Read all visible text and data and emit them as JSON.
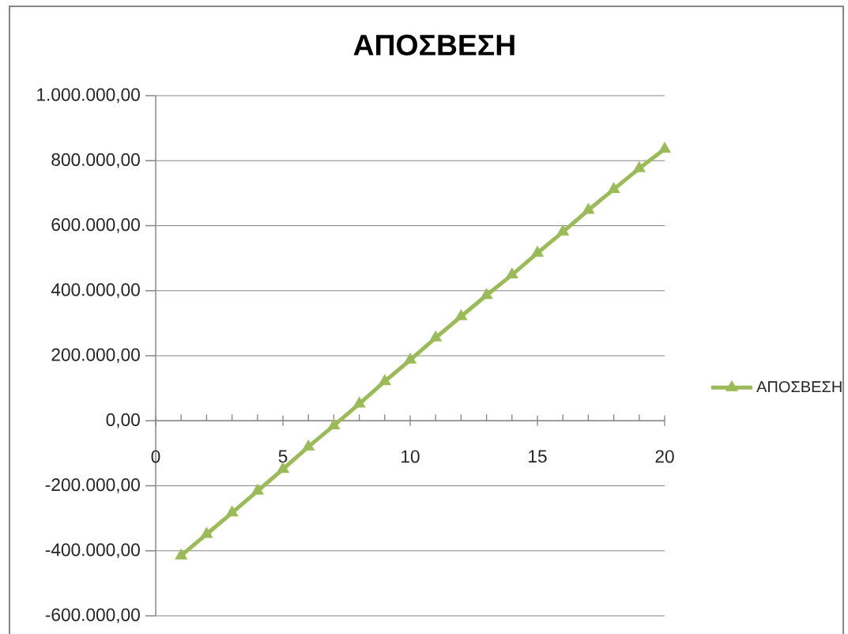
{
  "chart_data": {
    "type": "line",
    "title": "ΑΠΟΣΒΕΣΗ",
    "x": [
      1,
      2,
      3,
      4,
      5,
      6,
      7,
      8,
      9,
      10,
      11,
      12,
      13,
      14,
      15,
      16,
      17,
      18,
      19,
      20
    ],
    "series": [
      {
        "name": "ΑΠΟΣΒΕΣΗ",
        "color": "#9bbb59",
        "values": [
          -415000,
          -349000,
          -283000,
          -216000,
          -149000,
          -80000,
          -15000,
          52000,
          121000,
          187000,
          255000,
          321000,
          386000,
          449000,
          516000,
          581000,
          648000,
          712000,
          776000,
          836000
        ]
      }
    ],
    "xlim": [
      0,
      20
    ],
    "xticks": [
      0,
      {
        "value": 1,
        "label": null
      },
      {
        "value": 2,
        "label": null
      },
      {
        "value": 3,
        "label": null
      },
      {
        "value": 4,
        "label": null
      },
      5,
      {
        "value": 6,
        "label": null
      },
      {
        "value": 7,
        "label": null
      },
      {
        "value": 8,
        "label": null
      },
      {
        "value": 9,
        "label": null
      },
      10,
      {
        "value": 11,
        "label": null
      },
      {
        "value": 12,
        "label": null
      },
      {
        "value": 13,
        "label": null
      },
      {
        "value": 14,
        "label": null
      },
      15,
      {
        "value": 16,
        "label": null
      },
      {
        "value": 17,
        "label": null
      },
      {
        "value": 18,
        "label": null
      },
      {
        "value": 19,
        "label": null
      },
      20
    ],
    "ylim": [
      -600000,
      1000000
    ],
    "yticks": [
      {
        "value": -600000,
        "label": "-600.000,00"
      },
      {
        "value": -400000,
        "label": "-400.000,00"
      },
      {
        "value": -200000,
        "label": "-200.000,00"
      },
      {
        "value": 0,
        "label": "0,00"
      },
      {
        "value": 200000,
        "label": "200.000,00"
      },
      {
        "value": 400000,
        "label": "400.000,00"
      },
      {
        "value": 600000,
        "label": "600.000,00"
      },
      {
        "value": 800000,
        "label": "800.000,00"
      },
      {
        "value": 1000000,
        "label": "1.000.000,00"
      }
    ],
    "grid": "y",
    "legend": "right",
    "marker": "triangle",
    "line_style": "solid"
  }
}
